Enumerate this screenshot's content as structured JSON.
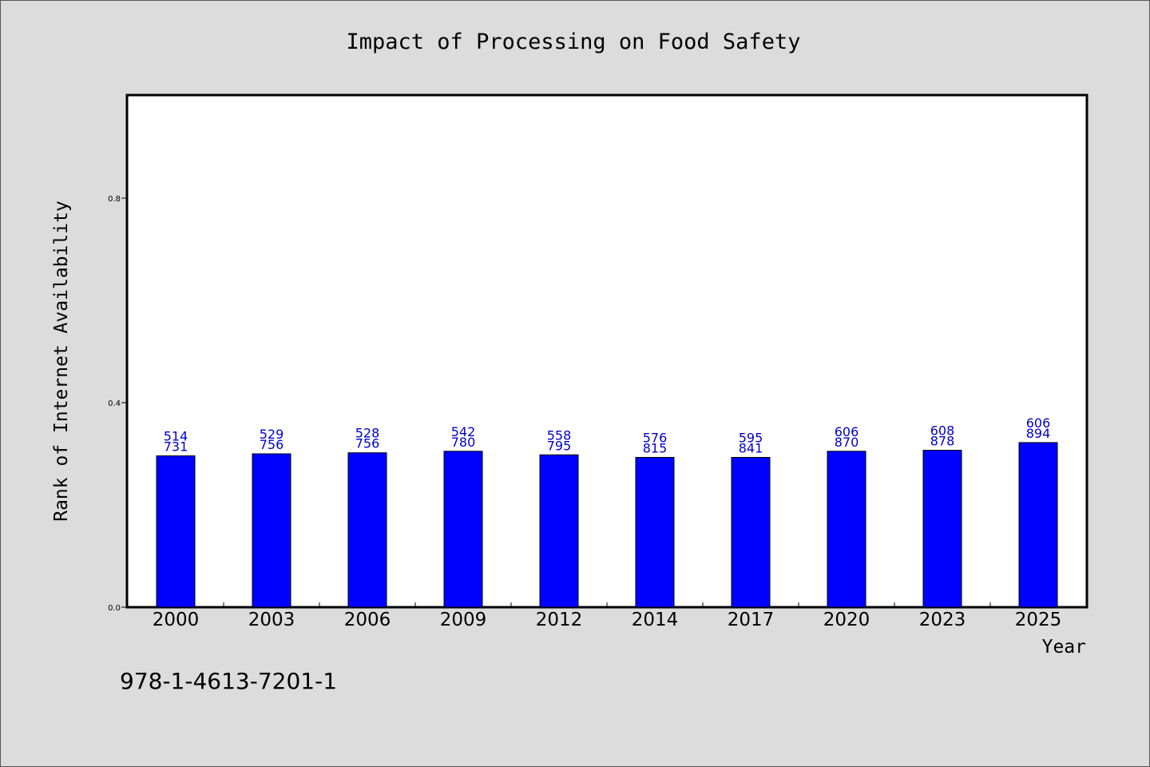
{
  "chart_data": {
    "type": "bar",
    "title": "Impact of Processing on Food Safety",
    "xlabel": "Year",
    "ylabel": "Rank of Internet Availability",
    "categories": [
      "2000",
      "2003",
      "2006",
      "2009",
      "2012",
      "2014",
      "2017",
      "2020",
      "2023",
      "2025"
    ],
    "values": [
      0.296,
      0.3,
      0.302,
      0.305,
      0.298,
      0.293,
      0.293,
      0.305,
      0.307,
      0.322
    ],
    "labels_top": [
      "514",
      "529",
      "528",
      "542",
      "558",
      "576",
      "595",
      "606",
      "608",
      "606"
    ],
    "labels_bottom": [
      "731",
      "756",
      "756",
      "780",
      "795",
      "815",
      "841",
      "870",
      "878",
      "894"
    ],
    "ylim": [
      0,
      1.0
    ],
    "yticks": [
      0.0,
      0.4,
      0.8
    ],
    "ytick_labels": [
      "0.0",
      "0.4",
      "0.8"
    ],
    "grid": false,
    "legend": "none",
    "bar_color": "#0000ff",
    "label_color": "#0000cc"
  },
  "footer": {
    "isbn": "978-1-4613-7201-1"
  }
}
